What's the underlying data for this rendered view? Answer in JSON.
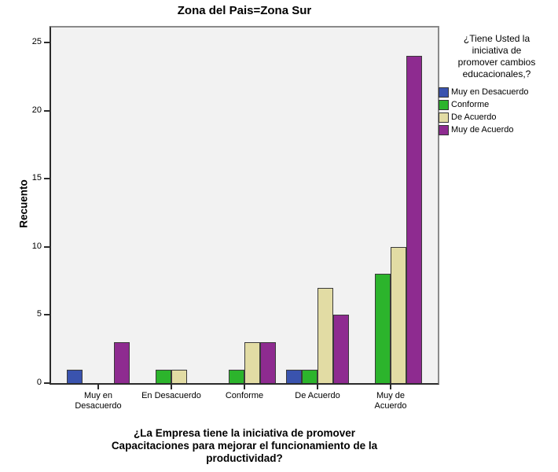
{
  "chart": {
    "title": "Zona del Pais=Zona Sur",
    "ylabel": "Recuento",
    "xlabel": "¿La Empresa tiene la iniciativa de promover\nCapacitaciones para mejorar el funcionamiento de la\nproductividad?"
  },
  "legend": {
    "title": "¿Tiene Usted la\niniciativa de\npromover cambios\neducacionales,?"
  },
  "colors": {
    "plot_background": "#f2f2f2",
    "axis": "#2b2b2b",
    "frame": "#8a8a8a",
    "series_blue": "#3a53ae",
    "series_green": "#2cb42c",
    "series_tan": "#e2dca4",
    "series_purple": "#8e2b90"
  },
  "chart_data": {
    "type": "bar",
    "grouped": true,
    "title": "Zona del Pais=Zona Sur",
    "xlabel": "¿La Empresa tiene la iniciativa de promover Capacitaciones para mejorar el funcionamiento de la productividad?",
    "ylabel": "Recuento",
    "ylim": [
      0,
      26
    ],
    "yticks": [
      0,
      5,
      10,
      15,
      20,
      25
    ],
    "grid": false,
    "legend_position": "right",
    "legend_title": "¿Tiene Usted la iniciativa de promover cambios educacionales,?",
    "categories": [
      "Muy en\nDesacuerdo",
      "En Desacuerdo",
      "Conforme",
      "De Acuerdo",
      "Muy de\nAcuerdo"
    ],
    "series": [
      {
        "name": "Muy en Desacuerdo",
        "color": "#3a53ae",
        "values": [
          1,
          0,
          0,
          1,
          0
        ]
      },
      {
        "name": "Conforme",
        "color": "#2cb42c",
        "values": [
          0,
          1,
          1,
          1,
          8
        ]
      },
      {
        "name": "De Acuerdo",
        "color": "#e2dca4",
        "values": [
          0,
          1,
          3,
          7,
          10
        ]
      },
      {
        "name": "Muy de Acuerdo",
        "color": "#8e2b90",
        "values": [
          3,
          0,
          3,
          5,
          24
        ]
      }
    ]
  }
}
